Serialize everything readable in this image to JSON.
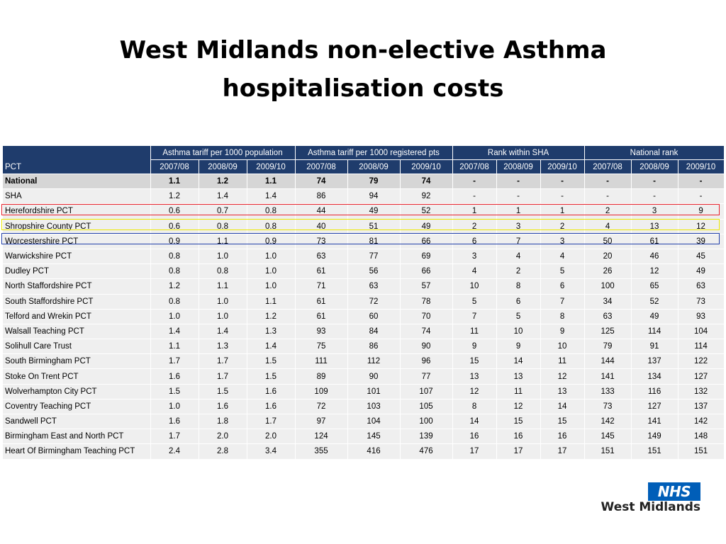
{
  "title": {
    "line1": "West Midlands non-elective Asthma",
    "line2": "hospitalisation costs"
  },
  "table": {
    "group_headers": [
      "Asthma tariff per 1000 population",
      "Asthma tariff per 1000 registered pts",
      "Rank within SHA",
      "National rank"
    ],
    "first_col_header": "PCT",
    "year_headers": [
      "2007/08",
      "2008/09",
      "2009/10",
      "2007/08",
      "2008/09",
      "2009/10",
      "2007/08",
      "2008/09",
      "2009/10",
      "2007/08",
      "2008/09",
      "2009/10"
    ],
    "rows": [
      {
        "name": "National",
        "values": [
          "1.1",
          "1.2",
          "1.1",
          "74",
          "79",
          "74",
          "-",
          "-",
          "-",
          "-",
          "-",
          "-"
        ]
      },
      {
        "name": "SHA",
        "values": [
          "1.2",
          "1.4",
          "1.4",
          "86",
          "94",
          "92",
          "-",
          "-",
          "-",
          "-",
          "-",
          "-"
        ]
      },
      {
        "name": "Herefordshire PCT",
        "values": [
          "0.6",
          "0.7",
          "0.8",
          "44",
          "49",
          "52",
          "1",
          "1",
          "1",
          "2",
          "3",
          "9"
        ]
      },
      {
        "name": "Shropshire County PCT",
        "values": [
          "0.6",
          "0.8",
          "0.8",
          "40",
          "51",
          "49",
          "2",
          "3",
          "2",
          "4",
          "13",
          "12"
        ]
      },
      {
        "name": "Worcestershire PCT",
        "values": [
          "0.9",
          "1.1",
          "0.9",
          "73",
          "81",
          "66",
          "6",
          "7",
          "3",
          "50",
          "61",
          "39"
        ]
      },
      {
        "name": "Warwickshire PCT",
        "values": [
          "0.8",
          "1.0",
          "1.0",
          "63",
          "77",
          "69",
          "3",
          "4",
          "4",
          "20",
          "46",
          "45"
        ]
      },
      {
        "name": "Dudley PCT",
        "values": [
          "0.8",
          "0.8",
          "1.0",
          "61",
          "56",
          "66",
          "4",
          "2",
          "5",
          "26",
          "12",
          "49"
        ]
      },
      {
        "name": "North Staffordshire PCT",
        "values": [
          "1.2",
          "1.1",
          "1.0",
          "71",
          "63",
          "57",
          "10",
          "8",
          "6",
          "100",
          "65",
          "63"
        ]
      },
      {
        "name": "South Staffordshire PCT",
        "values": [
          "0.8",
          "1.0",
          "1.1",
          "61",
          "72",
          "78",
          "5",
          "6",
          "7",
          "34",
          "52",
          "73"
        ]
      },
      {
        "name": "Telford and Wrekin PCT",
        "values": [
          "1.0",
          "1.0",
          "1.2",
          "61",
          "60",
          "70",
          "7",
          "5",
          "8",
          "63",
          "49",
          "93"
        ]
      },
      {
        "name": "Walsall Teaching PCT",
        "values": [
          "1.4",
          "1.4",
          "1.3",
          "93",
          "84",
          "74",
          "11",
          "10",
          "9",
          "125",
          "114",
          "104"
        ]
      },
      {
        "name": "Solihull Care Trust",
        "values": [
          "1.1",
          "1.3",
          "1.4",
          "75",
          "86",
          "90",
          "9",
          "9",
          "10",
          "79",
          "91",
          "114"
        ]
      },
      {
        "name": "South Birmingham PCT",
        "values": [
          "1.7",
          "1.7",
          "1.5",
          "111",
          "112",
          "96",
          "15",
          "14",
          "11",
          "144",
          "137",
          "122"
        ]
      },
      {
        "name": "Stoke On Trent PCT",
        "values": [
          "1.6",
          "1.7",
          "1.5",
          "89",
          "90",
          "77",
          "13",
          "13",
          "12",
          "141",
          "134",
          "127"
        ]
      },
      {
        "name": "Wolverhampton City PCT",
        "values": [
          "1.5",
          "1.5",
          "1.6",
          "109",
          "101",
          "107",
          "12",
          "11",
          "13",
          "133",
          "116",
          "132"
        ]
      },
      {
        "name": "Coventry Teaching PCT",
        "values": [
          "1.0",
          "1.6",
          "1.6",
          "72",
          "103",
          "105",
          "8",
          "12",
          "14",
          "73",
          "127",
          "137"
        ]
      },
      {
        "name": "Sandwell PCT",
        "values": [
          "1.6",
          "1.8",
          "1.7",
          "97",
          "104",
          "100",
          "14",
          "15",
          "15",
          "142",
          "141",
          "142"
        ]
      },
      {
        "name": "Birmingham East and North PCT",
        "values": [
          "1.7",
          "2.0",
          "2.0",
          "124",
          "145",
          "139",
          "16",
          "16",
          "16",
          "145",
          "149",
          "148"
        ]
      },
      {
        "name": "Heart Of Birmingham Teaching PCT",
        "values": [
          "2.4",
          "2.8",
          "3.4",
          "355",
          "416",
          "476",
          "17",
          "17",
          "17",
          "151",
          "151",
          "151"
        ]
      }
    ]
  },
  "highlight_colors": {
    "red": "#e8202a",
    "yellow": "#ece800",
    "blue": "#1f3ea8"
  },
  "logo": {
    "badge": "NHS",
    "text": "West Midlands"
  }
}
